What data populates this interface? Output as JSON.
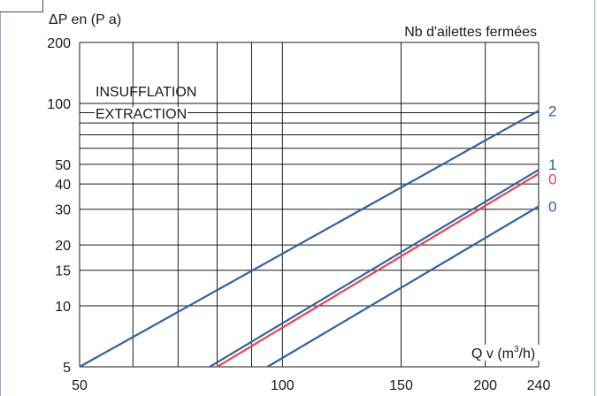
{
  "chart_data": {
    "type": "line",
    "title": "",
    "ylabel": "ΔP en (P a)",
    "xlabel": "Q v (m³/h)",
    "legend_title": "Nb d'ailettes fermées",
    "x_scale": "log",
    "y_scale": "log",
    "xlim": [
      50,
      240
    ],
    "ylim": [
      5,
      200
    ],
    "x_ticks": [
      50,
      100,
      150,
      200,
      240
    ],
    "y_ticks": [
      5,
      10,
      15,
      20,
      30,
      40,
      50,
      100,
      200
    ],
    "x_gridlines": [
      50,
      60,
      70,
      80,
      90,
      100,
      150,
      200,
      240
    ],
    "y_gridlines": [
      5,
      10,
      15,
      20,
      30,
      40,
      50,
      60,
      70,
      80,
      90,
      100,
      200
    ],
    "grid": true,
    "annotations": [
      {
        "text": "INSUFFLATION",
        "color": "#2e62a8"
      },
      {
        "text": "EXTRACTION",
        "color": "#e8464c"
      }
    ],
    "series": [
      {
        "name": "2",
        "mode": "INSUFFLATION",
        "color": "#2e62a8",
        "x": [
          50,
          240
        ],
        "y": [
          5,
          92
        ]
      },
      {
        "name": "1",
        "mode": "INSUFFLATION",
        "color": "#2e62a8",
        "x": [
          78,
          240
        ],
        "y": [
          5,
          47
        ]
      },
      {
        "name": "0",
        "mode": "EXTRACTION",
        "color": "#e8464c",
        "x": [
          80,
          240
        ],
        "y": [
          5,
          45
        ]
      },
      {
        "name": "0",
        "mode": "INSUFFLATION",
        "color": "#2e62a8",
        "x": [
          95,
          240
        ],
        "y": [
          5,
          31
        ]
      }
    ]
  },
  "colors": {
    "insufflation": "#2e62a8",
    "extraction": "#e8464c",
    "grid": "#1a1a1a"
  }
}
